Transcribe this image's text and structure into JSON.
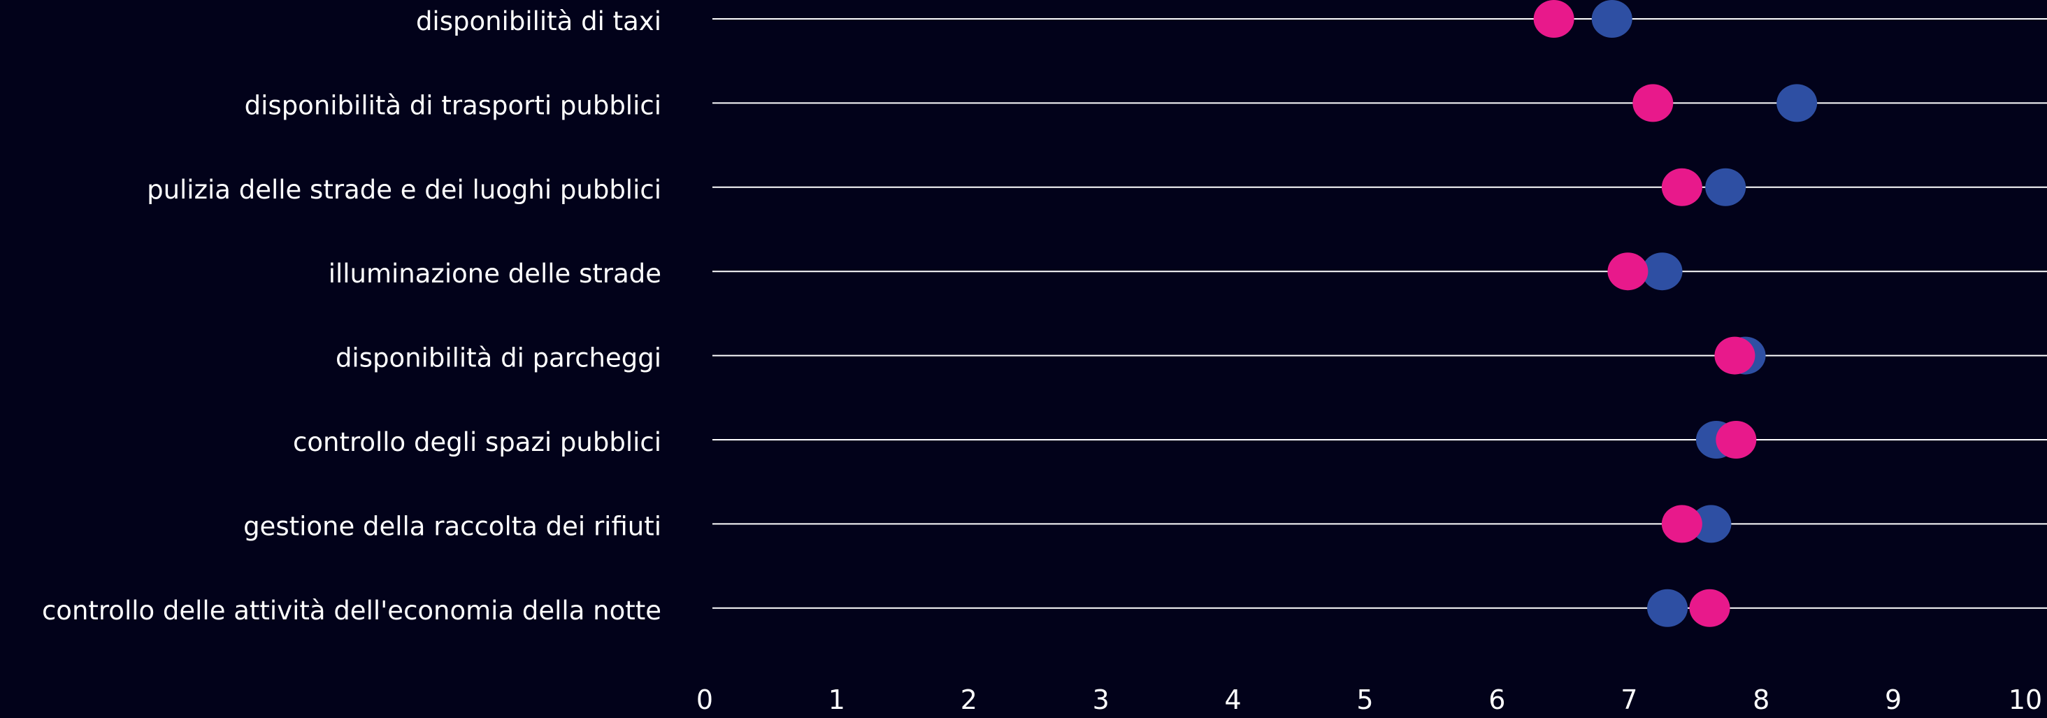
{
  "chart_data": {
    "type": "dot",
    "categories": [
      "disponibilità di taxi",
      "disponibilità di trasporti pubblici",
      "pulizia delle strade e dei luoghi pubblici",
      "illuminazione delle strade",
      "disponibilità di parcheggi",
      "controllo degli spazi pubblici",
      "gestione della raccolta dei rifiuti",
      "controllo delle attività dell'economia della notte"
    ],
    "series": [
      {
        "color": "#2e4fa3",
        "values": [
          6.87,
          8.27,
          7.73,
          7.25,
          7.88,
          7.66,
          7.62,
          7.29
        ]
      },
      {
        "color": "#e8198b",
        "values": [
          6.43,
          7.18,
          7.4,
          6.99,
          7.8,
          7.81,
          7.4,
          7.61
        ]
      }
    ],
    "xlim": [
      0,
      10
    ],
    "xticks": [
      "0",
      "1",
      "2",
      "3",
      "4",
      "5",
      "6",
      "7",
      "8",
      "9",
      "10"
    ],
    "grid": false,
    "legend": "none"
  }
}
